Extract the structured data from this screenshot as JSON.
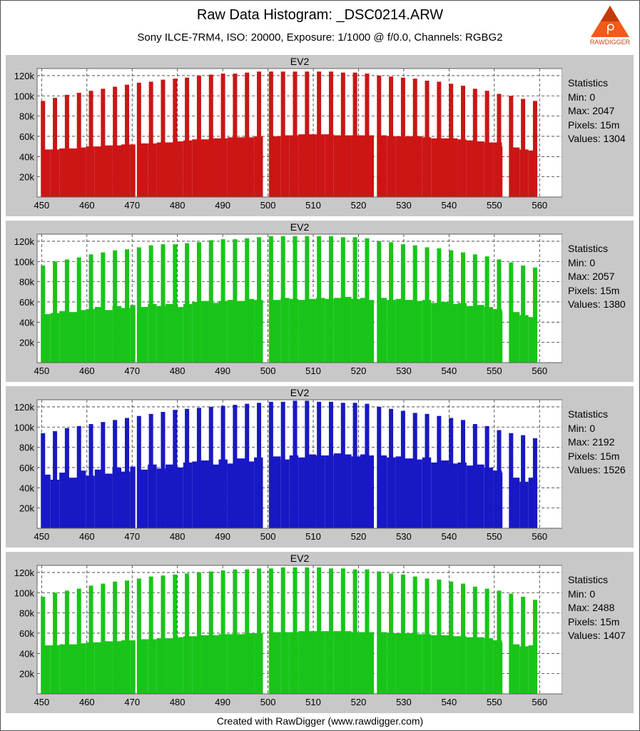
{
  "title": "Raw Data Histogram: _DSC0214.ARW",
  "subtitle": "Sony ILCE-7RM4, ISO: 20000, Exposure: 1/1000 @ f/0.0, Channels: RGBG2",
  "footer": "Created with RawDigger (www.rawdigger.com)",
  "logo_text": "RAWDIGGER",
  "colors": {
    "r": "#cc1515",
    "g": "#19c419",
    "b": "#1818c4",
    "g2": "#19c419",
    "panel": "#c8c8c8",
    "plot": "#ffffff"
  },
  "chart_data": [
    {
      "type": "bar",
      "channel": "r",
      "title": "EV2",
      "xlim": [
        449,
        565
      ],
      "ylim": [
        0,
        127000
      ],
      "xticks": [
        450,
        460,
        470,
        480,
        490,
        500,
        510,
        520,
        530,
        540,
        550,
        560
      ],
      "yticks": [
        20000,
        40000,
        60000,
        80000,
        100000,
        120000
      ],
      "ytick_labels": [
        "20k",
        "40k",
        "60k",
        "80k",
        "100k",
        "120k"
      ],
      "stats": {
        "label": "Statistics",
        "min": "Min: 0",
        "max": "Max: 2047",
        "pixels": "Pixels: 15m",
        "values": "Values: 1304"
      },
      "values": [
        47000,
        47000,
        48000,
        48000,
        49000,
        50000,
        50000,
        51000,
        51000,
        52000,
        52000,
        53000,
        53000,
        54000,
        54000,
        55000,
        56000,
        57000,
        57000,
        58000,
        58000,
        59000,
        59000,
        59000,
        60000,
        60000,
        60000,
        61000,
        61000,
        62000,
        62000,
        62000,
        62000,
        61000,
        61000,
        61000,
        61000,
        61000,
        61000,
        60000,
        60000,
        60000,
        60000,
        59000,
        58000,
        58000,
        58000,
        57000,
        56000,
        55000,
        54000,
        54000,
        50000,
        49000,
        47000,
        46000
      ],
      "spikes": [
        95000,
        98000,
        101000,
        103000,
        105000,
        107000,
        109000,
        111000,
        113000,
        114000,
        116000,
        117000,
        118000,
        120000,
        121000,
        122000,
        122000,
        123000,
        124000,
        124000,
        124000,
        124000,
        124000,
        124000,
        124000,
        123000,
        123000,
        122000,
        120000,
        119000,
        118000,
        117000,
        115000,
        114000,
        112000,
        110000,
        107000,
        105000,
        102000,
        100000,
        97000,
        95000
      ]
    },
    {
      "type": "bar",
      "channel": "g",
      "title": "EV2",
      "xlim": [
        449,
        565
      ],
      "ylim": [
        0,
        127000
      ],
      "xticks": [
        450,
        460,
        470,
        480,
        490,
        500,
        510,
        520,
        530,
        540,
        550,
        560
      ],
      "yticks": [
        20000,
        40000,
        60000,
        80000,
        100000,
        120000
      ],
      "ytick_labels": [
        "20k",
        "40k",
        "60k",
        "80k",
        "100k",
        "120k"
      ],
      "stats": {
        "label": "Statistics",
        "min": "Min: 0",
        "max": "Max: 2057",
        "pixels": "Pixels: 15m",
        "values": "Values: 1380"
      },
      "values": [
        48000,
        49000,
        51000,
        50000,
        52000,
        53000,
        55000,
        52000,
        56000,
        54000,
        57000,
        55000,
        58000,
        56000,
        58000,
        55000,
        58000,
        60000,
        61000,
        59000,
        61000,
        62000,
        61000,
        63000,
        62000,
        64000,
        62000,
        64000,
        63000,
        62000,
        63000,
        64000,
        63000,
        64000,
        65000,
        63000,
        64000,
        62000,
        64000,
        62000,
        63000,
        62000,
        61000,
        62000,
        59000,
        60000,
        58000,
        59000,
        56000,
        57000,
        55000,
        53000,
        51000,
        50000,
        47000,
        45000
      ],
      "spikes": [
        96000,
        100000,
        102000,
        104000,
        107000,
        109000,
        111000,
        112000,
        114000,
        116000,
        117000,
        117000,
        118000,
        119000,
        121000,
        122000,
        122000,
        123000,
        124000,
        125000,
        125000,
        125000,
        125000,
        125000,
        125000,
        124000,
        124000,
        123000,
        120000,
        119000,
        117000,
        116000,
        114000,
        113000,
        111000,
        109000,
        107000,
        105000,
        102000,
        99000,
        96000,
        94000
      ]
    },
    {
      "type": "bar",
      "channel": "b",
      "title": "EV2",
      "xlim": [
        449,
        565
      ],
      "ylim": [
        0,
        127000
      ],
      "xticks": [
        450,
        460,
        470,
        480,
        490,
        500,
        510,
        520,
        530,
        540,
        550,
        560
      ],
      "yticks": [
        20000,
        40000,
        60000,
        80000,
        100000,
        120000
      ],
      "ytick_labels": [
        "20k",
        "40k",
        "60k",
        "80k",
        "100k",
        "120k"
      ],
      "stats": {
        "label": "Statistics",
        "min": "Min: 0",
        "max": "Max: 2192",
        "pixels": "Pixels: 15m",
        "values": "Values: 1526"
      },
      "values": [
        53000,
        48000,
        55000,
        50000,
        57000,
        52000,
        58000,
        54000,
        60000,
        56000,
        61000,
        58000,
        63000,
        59000,
        63000,
        60000,
        65000,
        66000,
        67000,
        63000,
        68000,
        64000,
        69000,
        66000,
        70000,
        67000,
        71000,
        68000,
        72000,
        70000,
        73000,
        72000,
        72000,
        74000,
        73000,
        71000,
        73000,
        72000,
        72000,
        70000,
        71000,
        69000,
        68000,
        70000,
        65000,
        67000,
        64000,
        65000,
        62000,
        63000,
        60000,
        57000,
        55000,
        50000,
        46000,
        50000
      ],
      "spikes": [
        94000,
        96000,
        99000,
        101000,
        103000,
        105000,
        107000,
        109000,
        111000,
        113000,
        115000,
        117000,
        118000,
        119000,
        120000,
        121000,
        122000,
        123000,
        124000,
        125000,
        125000,
        126000,
        126000,
        125000,
        125000,
        124000,
        124000,
        123000,
        120000,
        118000,
        116000,
        114000,
        113000,
        111000,
        109000,
        107000,
        103000,
        101000,
        97000,
        94000,
        92000,
        89000
      ]
    },
    {
      "type": "bar",
      "channel": "g2",
      "title": "EV2",
      "xlim": [
        449,
        565
      ],
      "ylim": [
        0,
        127000
      ],
      "xticks": [
        450,
        460,
        470,
        480,
        490,
        500,
        510,
        520,
        530,
        540,
        550,
        560
      ],
      "yticks": [
        20000,
        40000,
        60000,
        80000,
        100000,
        120000
      ],
      "ytick_labels": [
        "20k",
        "40k",
        "60k",
        "80k",
        "100k",
        "120k"
      ],
      "stats": {
        "label": "Statistics",
        "min": "Min: 0",
        "max": "Max: 2488",
        "pixels": "Pixels: 15m",
        "values": "Values: 1407"
      },
      "values": [
        48000,
        48000,
        49000,
        49000,
        50000,
        51000,
        51000,
        52000,
        52000,
        53000,
        53000,
        54000,
        54000,
        55000,
        55000,
        56000,
        57000,
        57000,
        58000,
        58000,
        59000,
        59000,
        59000,
        60000,
        60000,
        60000,
        61000,
        61000,
        61000,
        62000,
        62000,
        62000,
        62000,
        62000,
        62000,
        61000,
        61000,
        61000,
        61000,
        60000,
        60000,
        60000,
        59000,
        59000,
        58000,
        58000,
        57000,
        57000,
        56000,
        56000,
        55000,
        53000,
        51000,
        49000,
        47000,
        48000
      ],
      "spikes": [
        96000,
        100000,
        102000,
        104000,
        107000,
        109000,
        111000,
        112000,
        114000,
        116000,
        117000,
        118000,
        119000,
        120000,
        121000,
        122000,
        123000,
        123000,
        124000,
        124000,
        125000,
        125000,
        125000,
        125000,
        124000,
        124000,
        123000,
        123000,
        121000,
        119000,
        118000,
        116000,
        114000,
        113000,
        111000,
        109000,
        106000,
        104000,
        102000,
        99000,
        96000,
        93000
      ]
    }
  ]
}
